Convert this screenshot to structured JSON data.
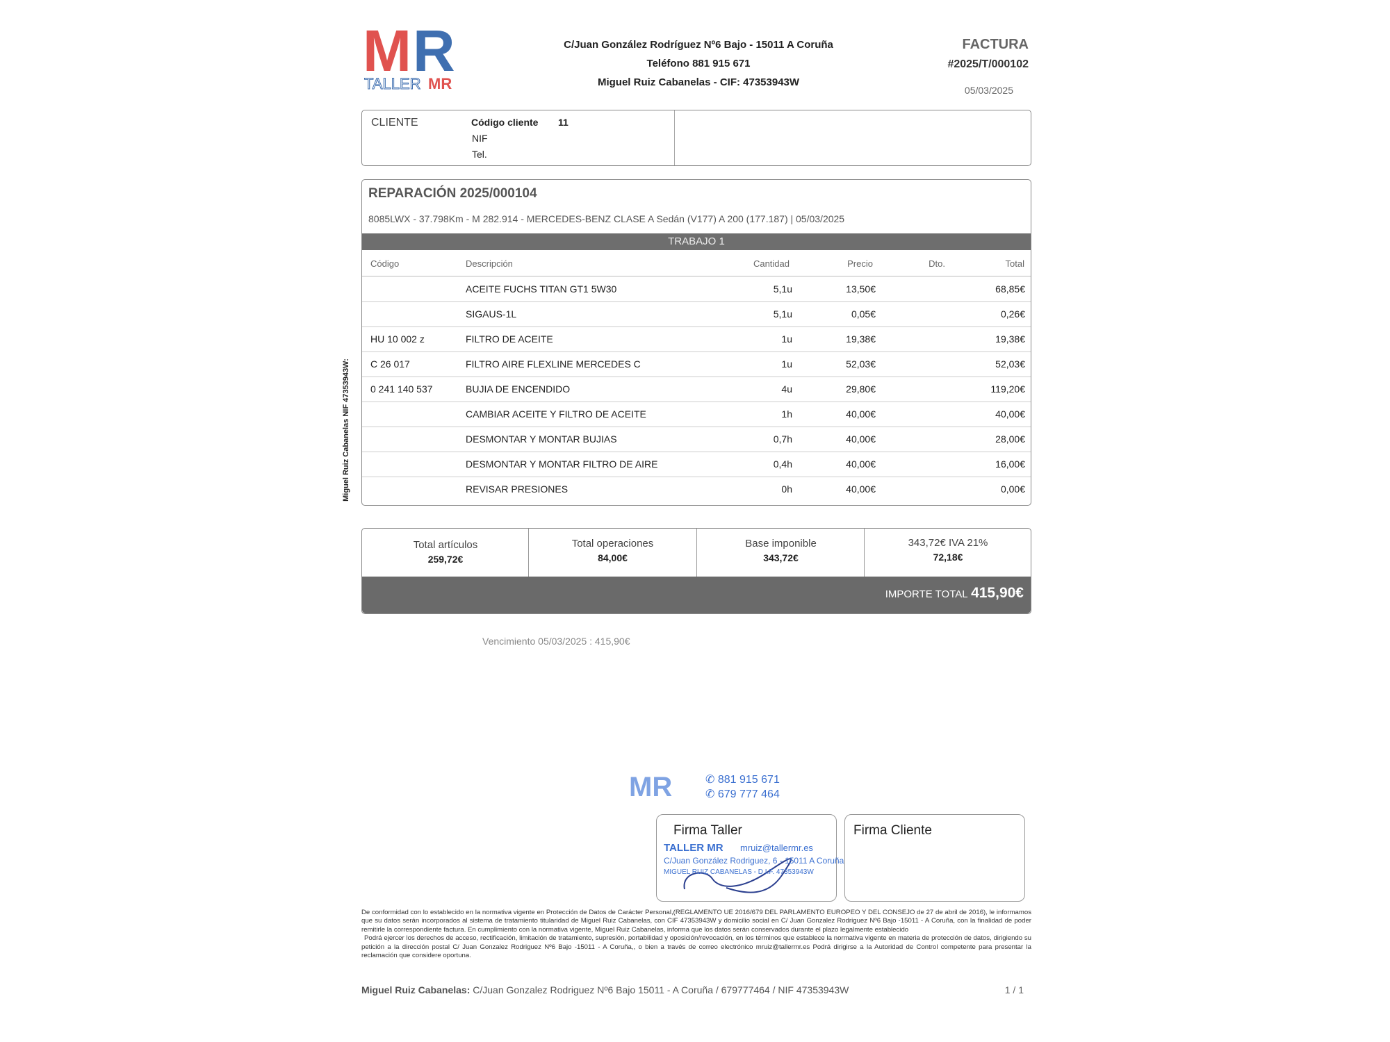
{
  "company": {
    "logo_text": "MR",
    "logo_subtext": "TALLER MR",
    "address": "C/Juan González Rodríguez Nº6 Bajo - 15011 A Coruña",
    "phone": "Teléfono 881 915 671",
    "owner": "Miguel Ruiz Cabanelas - CIF: 47353943W",
    "side_text": "Miguel Ruiz Cabanelas NIF 47353943W:"
  },
  "invoice": {
    "title": "FACTURA",
    "number": "#2025/T/000102",
    "date": "05/03/2025"
  },
  "client": {
    "label": "CLIENTE",
    "code_label": "Código cliente",
    "code_value": "11",
    "nif_label": "NIF",
    "tel_label": "Tel."
  },
  "repair": {
    "title": "REPARACIÓN 2025/000104",
    "vehicle": "8085LWX - 37.798Km - M 282.914 - MERCEDES-BENZ CLASE A Sedán (V177) A 200 (177.187) | 05/03/2025",
    "job_title": "TRABAJO 1",
    "columns": {
      "code": "Código",
      "desc": "Descripción",
      "qty": "Cantidad",
      "price": "Precio",
      "disc": "Dto.",
      "total": "Total"
    },
    "rows": [
      {
        "code": "",
        "desc": "ACEITE FUCHS TITAN GT1 5W30",
        "qty": "5,1u",
        "price": "13,50€",
        "disc": "",
        "total": "68,85€"
      },
      {
        "code": "",
        "desc": "SIGAUS-1L",
        "qty": "5,1u",
        "price": "0,05€",
        "disc": "",
        "total": "0,26€"
      },
      {
        "code": "HU 10 002 z",
        "desc": "FILTRO DE ACEITE",
        "qty": "1u",
        "price": "19,38€",
        "disc": "",
        "total": "19,38€"
      },
      {
        "code": "C 26 017",
        "desc": "FILTRO AIRE FLEXLINE MERCEDES C",
        "qty": "1u",
        "price": "52,03€",
        "disc": "",
        "total": "52,03€"
      },
      {
        "code": "0 241 140 537",
        "desc": "BUJIA DE ENCENDIDO",
        "qty": "4u",
        "price": "29,80€",
        "disc": "",
        "total": "119,20€"
      },
      {
        "code": "",
        "desc": "CAMBIAR ACEITE Y FILTRO DE ACEITE",
        "qty": "1h",
        "price": "40,00€",
        "disc": "",
        "total": "40,00€"
      },
      {
        "code": "",
        "desc": "DESMONTAR Y MONTAR BUJIAS",
        "qty": "0,7h",
        "price": "40,00€",
        "disc": "",
        "total": "28,00€"
      },
      {
        "code": "",
        "desc": "DESMONTAR Y MONTAR FILTRO DE AIRE",
        "qty": "0,4h",
        "price": "40,00€",
        "disc": "",
        "total": "16,00€"
      },
      {
        "code": "",
        "desc": "REVISAR PRESIONES",
        "qty": "0h",
        "price": "40,00€",
        "disc": "",
        "total": "0,00€"
      }
    ]
  },
  "totals": {
    "articles_label": "Total artículos",
    "articles_value": "259,72€",
    "operations_label": "Total operaciones",
    "operations_value": "84,00€",
    "base_label": "Base imponible",
    "base_value": "343,72€",
    "iva_label": "343,72€ IVA 21%",
    "iva_value": "72,18€",
    "grand_label": "IMPORTE TOTAL",
    "grand_value": "415,90€"
  },
  "due": "Vencimiento 05/03/2025 : 415,90€",
  "signatures": {
    "workshop": "Firma Taller",
    "client": "Firma Cliente",
    "stamp": {
      "logo": "MR",
      "name": "TALLER MR",
      "phone1": "881 915 671",
      "phone2": "679 777 464",
      "email": "mruiz@tallermr.es",
      "address": "C/Juan González Rodriguez, 6 - 15011 A Coruña",
      "owner": "MIGUEL RUIZ CABANELAS - D.I.F. 47353943W"
    }
  },
  "legal_text": "De conformidad con lo establecido en la normativa vigente en Protección de Datos de Carácter Personal,(REGLAMENTO UE 2016/679 DEL PARLAMENTO EUROPEO Y DEL CONSEJO de 27 de abril de 2016), le informamos que su datos serán incorporados al sistema de tratamiento titularidad de Miguel Ruiz Cabanelas, con CIF 47353943W y domicilio social en C/ Juan Gonzalez Rodriguez Nº6 Bajo -15011 - A Coruña, con la finalidad de poder remitirle la correspondiente factura. En cumplimiento con la normativa vigente, Miguel Ruiz Cabanelas, informa que los datos serán conservados durante el plazo legalmente establecido",
  "legal_text_2": "Podrá ejercer los derechos de acceso, rectificación, limitación de tratamiento, supresión, portabilidad y oposición/revocación, en los términos que establece la normativa vigente en materia de protección de datos, dirigiendo su petición a la dirección postal C/ Juan Gonzalez Rodriguez Nº6 Bajo -15011 - A Coruña,, o bien a través de correo electrónico mruiz@tallermr.es Podrá dirigirse a la Autoridad de Control competente para presentar la reclamación que considere oportuna.",
  "footer": {
    "name": "Miguel Ruiz Cabanelas:",
    "details": " C/Juan Gonzalez Rodriguez Nº6 Bajo 15011 - A Coruña / 679777464 / NIF 47353943W",
    "page": "1 / 1"
  },
  "colors": {
    "logo_red": "#e0524f",
    "logo_blue": "#3f6fb0",
    "bar_grey": "#6e6e6e",
    "stamp_blue": "#3a6fd0"
  }
}
